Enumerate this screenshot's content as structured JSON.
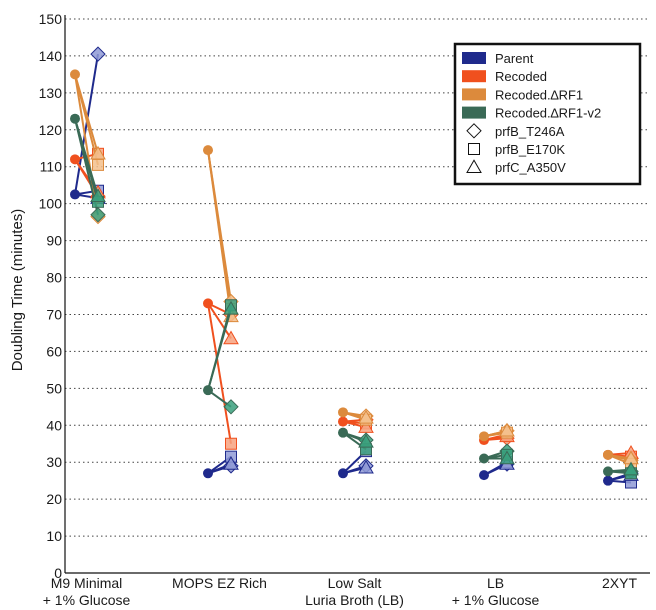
{
  "chart_data": {
    "type": "line",
    "title": "",
    "xlabel": "",
    "ylabel": "Doubling Time (minutes)",
    "ylim": [
      0,
      150
    ],
    "yticks": [
      0,
      10,
      20,
      30,
      40,
      50,
      60,
      70,
      80,
      90,
      100,
      110,
      120,
      130,
      140,
      150
    ],
    "grid": "horizontal dotted",
    "legend_position": "top-right",
    "categories": [
      {
        "line1": "M9 Minimal",
        "line2": "+ 1% Glucose"
      },
      {
        "line1": "MOPS EZ Rich",
        "line2": ""
      },
      {
        "line1": "Low Salt",
        "line2": "Luria Broth (LB)"
      },
      {
        "line1": "LB",
        "line2": "+ 1% Glucose"
      },
      {
        "line1": "2XYT",
        "line2": ""
      }
    ],
    "series": [
      {
        "name": "Parent",
        "color": "#1f2a8c",
        "light_color": "#8f9ad6",
        "base": [
          102.5,
          27,
          27,
          26.5,
          25
        ],
        "mutants": {
          "diamond": [
            140.5,
            29,
            29,
            29.5,
            27
          ],
          "square": [
            103.5,
            31.5,
            33,
            30,
            24.5
          ],
          "triangle": [
            101.5,
            29.5,
            28.5,
            29.5,
            26.5
          ]
        }
      },
      {
        "name": "Recoded",
        "color": "#f0501e",
        "light_color": "#f7a27f",
        "base": [
          112,
          73,
          41,
          36,
          32
        ],
        "mutants": {
          "diamond": [
            102,
            70,
            41.5,
            36.5,
            31
          ],
          "square": [
            113.5,
            35,
            40.5,
            37.5,
            31.5
          ],
          "triangle": [
            103,
            63.5,
            39.5,
            37,
            32.5
          ]
        }
      },
      {
        "name": "Recoded.∆RF1",
        "color": "#dc8a3c",
        "light_color": "#f3c08c",
        "base": [
          135,
          114.5,
          43.5,
          37,
          32
        ],
        "mutants": {
          "diamond": [
            96.5,
            73.5,
            42.5,
            38.5,
            30.5
          ],
          "square": [
            110.5,
            71.5,
            41.5,
            38,
            29.5
          ],
          "triangle": [
            113.5,
            69.5,
            42,
            38.5,
            31
          ]
        }
      },
      {
        "name": "Recoded.∆RF1-v2",
        "color": "#3a6a56",
        "light_color": "#3aa07c",
        "base": [
          123,
          49.5,
          38,
          31,
          27.5
        ],
        "mutants": {
          "diamond": [
            97,
            45,
            36,
            33,
            27.5
          ],
          "square": [
            100.5,
            72.5,
            33.5,
            32,
            27
          ],
          "triangle": [
            102,
            71.5,
            35.5,
            31,
            28
          ]
        }
      }
    ],
    "legend": {
      "series": [
        "Parent",
        "Recoded",
        "Recoded.∆RF1",
        "Recoded.∆RF1-v2"
      ],
      "markers": [
        {
          "shape": "diamond",
          "label": "prfB_T246A"
        },
        {
          "shape": "square",
          "label": "prfB_E170K"
        },
        {
          "shape": "triangle",
          "label": "prfC_A350V"
        }
      ]
    }
  }
}
